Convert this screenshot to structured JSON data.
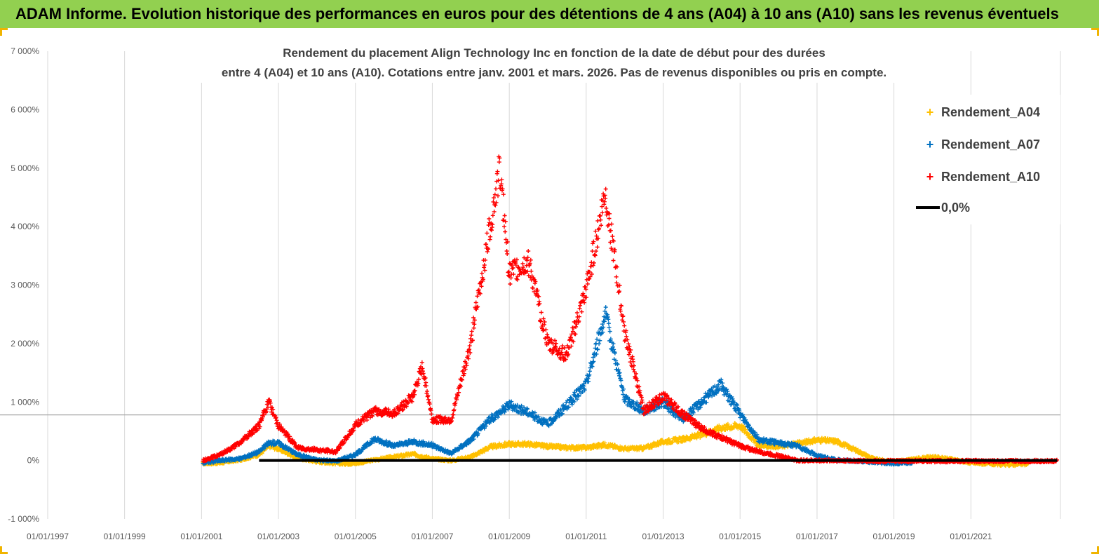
{
  "banner": {
    "text": "ADAM Informe. Evolution historique des performances en euros pour des détentions de 4 ans (A04) à 10 ans (A10) sans les revenus éventuels"
  },
  "chart_data": {
    "type": "scatter",
    "title_line1": "Rendement du placement Align Technology Inc en fonction de la date de début pour des durées",
    "title_line2": "entre 4 (A04) et 10 ans (A10). Cotations entre janv. 2001 et mars. 2026. Pas de revenus disponibles ou pris en compte.",
    "xlim": [
      "1997-01-01",
      "2023-05-01"
    ],
    "ylim": [
      -1000,
      7000
    ],
    "y_ticks": [
      -1000,
      0,
      1000,
      2000,
      3000,
      4000,
      5000,
      6000,
      7000
    ],
    "y_tick_labels": [
      "-1 000%",
      "0%",
      "1 000%",
      "2 000%",
      "3 000%",
      "4 000%",
      "5 000%",
      "6 000%",
      "7 000%"
    ],
    "x_ticks": [
      "1997-01-01",
      "1999-01-01",
      "2001-01-01",
      "2003-01-01",
      "2005-01-01",
      "2007-01-01",
      "2009-01-01",
      "2011-01-01",
      "2013-01-01",
      "2015-01-01",
      "2017-01-01",
      "2019-01-01",
      "2021-01-01"
    ],
    "x_tick_labels": [
      "01/01/1997",
      "01/01/1999",
      "01/01/2001",
      "01/01/2003",
      "01/01/2005",
      "01/01/2007",
      "01/01/2009",
      "01/01/2011",
      "01/01/2013",
      "01/01/2015",
      "01/01/2017",
      "01/01/2019",
      "01/01/2021"
    ],
    "grid": "vertical",
    "legend_position": "top-right",
    "series": [
      {
        "name": "Rendement_A04",
        "color": "#ffc000",
        "marker": "plus",
        "points": [
          [
            "2001-01-15",
            -50
          ],
          [
            "2001-07-01",
            -40
          ],
          [
            "2002-01-01",
            10
          ],
          [
            "2002-07-01",
            100
          ],
          [
            "2002-10-01",
            250
          ],
          [
            "2003-01-01",
            200
          ],
          [
            "2003-07-01",
            40
          ],
          [
            "2004-01-01",
            -20
          ],
          [
            "2004-07-01",
            -50
          ],
          [
            "2005-01-01",
            -50
          ],
          [
            "2005-07-01",
            10
          ],
          [
            "2006-01-01",
            60
          ],
          [
            "2006-07-01",
            110
          ],
          [
            "2007-01-01",
            30
          ],
          [
            "2007-07-01",
            0
          ],
          [
            "2008-01-01",
            60
          ],
          [
            "2008-07-01",
            230
          ],
          [
            "2009-01-01",
            280
          ],
          [
            "2009-07-01",
            280
          ],
          [
            "2010-01-01",
            240
          ],
          [
            "2010-07-01",
            220
          ],
          [
            "2011-01-01",
            220
          ],
          [
            "2011-07-01",
            270
          ],
          [
            "2012-01-01",
            200
          ],
          [
            "2012-07-01",
            210
          ],
          [
            "2013-01-01",
            320
          ],
          [
            "2013-07-01",
            360
          ],
          [
            "2014-01-01",
            440
          ],
          [
            "2014-07-01",
            560
          ],
          [
            "2015-01-01",
            600
          ],
          [
            "2015-07-01",
            250
          ],
          [
            "2016-01-01",
            240
          ],
          [
            "2016-07-01",
            290
          ],
          [
            "2017-01-01",
            350
          ],
          [
            "2017-07-01",
            330
          ],
          [
            "2018-01-01",
            180
          ],
          [
            "2018-07-01",
            20
          ],
          [
            "2019-01-01",
            -20
          ],
          [
            "2019-07-01",
            20
          ],
          [
            "2020-01-01",
            60
          ],
          [
            "2020-07-01",
            20
          ],
          [
            "2021-01-01",
            -40
          ],
          [
            "2021-07-01",
            -60
          ],
          [
            "2022-01-01",
            -70
          ],
          [
            "2022-07-01",
            -60
          ]
        ]
      },
      {
        "name": "Rendement_A07",
        "color": "#0070c0",
        "marker": "plus",
        "points": [
          [
            "2001-01-15",
            -40
          ],
          [
            "2001-07-01",
            0
          ],
          [
            "2002-01-01",
            30
          ],
          [
            "2002-07-01",
            150
          ],
          [
            "2002-10-01",
            300
          ],
          [
            "2003-01-01",
            300
          ],
          [
            "2003-07-01",
            100
          ],
          [
            "2004-01-01",
            10
          ],
          [
            "2004-07-01",
            -10
          ],
          [
            "2005-01-01",
            100
          ],
          [
            "2005-07-01",
            370
          ],
          [
            "2006-01-01",
            250
          ],
          [
            "2006-07-01",
            320
          ],
          [
            "2007-01-01",
            260
          ],
          [
            "2007-07-01",
            120
          ],
          [
            "2008-01-01",
            350
          ],
          [
            "2008-07-01",
            700
          ],
          [
            "2009-01-01",
            950
          ],
          [
            "2009-07-01",
            820
          ],
          [
            "2010-01-01",
            620
          ],
          [
            "2010-07-01",
            940
          ],
          [
            "2011-01-01",
            1300
          ],
          [
            "2011-07-01",
            2500
          ],
          [
            "2012-01-01",
            1050
          ],
          [
            "2012-07-01",
            850
          ],
          [
            "2013-01-01",
            1000
          ],
          [
            "2013-07-01",
            700
          ],
          [
            "2014-01-01",
            1000
          ],
          [
            "2014-07-01",
            1300
          ],
          [
            "2015-01-01",
            800
          ],
          [
            "2015-07-01",
            350
          ],
          [
            "2016-01-01",
            300
          ],
          [
            "2016-07-01",
            250
          ],
          [
            "2017-01-01",
            80
          ],
          [
            "2017-07-01",
            10
          ],
          [
            "2018-01-01",
            -10
          ],
          [
            "2018-07-01",
            -30
          ],
          [
            "2019-01-01",
            -50
          ],
          [
            "2019-07-01",
            -30
          ]
        ]
      },
      {
        "name": "Rendement_A10",
        "color": "#ff0000",
        "marker": "plus",
        "points": [
          [
            "2001-01-15",
            0
          ],
          [
            "2001-07-01",
            100
          ],
          [
            "2002-01-01",
            300
          ],
          [
            "2002-07-01",
            600
          ],
          [
            "2002-10-01",
            1000
          ],
          [
            "2003-01-01",
            600
          ],
          [
            "2003-07-01",
            220
          ],
          [
            "2004-01-01",
            180
          ],
          [
            "2004-07-01",
            150
          ],
          [
            "2005-01-01",
            600
          ],
          [
            "2005-07-01",
            850
          ],
          [
            "2006-01-01",
            800
          ],
          [
            "2006-07-01",
            1100
          ],
          [
            "2006-10-01",
            1600
          ],
          [
            "2007-01-01",
            700
          ],
          [
            "2007-07-01",
            700
          ],
          [
            "2008-01-01",
            2000
          ],
          [
            "2008-07-01",
            4000
          ],
          [
            "2008-10-01",
            5000
          ],
          [
            "2009-01-01",
            3200
          ],
          [
            "2009-07-01",
            3400
          ],
          [
            "2010-01-01",
            2000
          ],
          [
            "2010-07-01",
            1800
          ],
          [
            "2011-01-01",
            2900
          ],
          [
            "2011-07-01",
            4600
          ],
          [
            "2012-01-01",
            2200
          ],
          [
            "2012-07-01",
            850
          ],
          [
            "2013-01-01",
            1100
          ],
          [
            "2013-07-01",
            800
          ],
          [
            "2014-01-01",
            550
          ],
          [
            "2014-07-01",
            400
          ],
          [
            "2015-01-01",
            250
          ],
          [
            "2015-07-01",
            150
          ],
          [
            "2016-01-01",
            80
          ],
          [
            "2016-07-01",
            0
          ],
          [
            "2017-07-01",
            0
          ],
          [
            "2018-07-01",
            -10
          ],
          [
            "2019-07-01",
            -10
          ],
          [
            "2020-07-01",
            -10
          ],
          [
            "2021-07-01",
            -10
          ],
          [
            "2022-07-01",
            -10
          ],
          [
            "2023-04-01",
            -10
          ]
        ]
      },
      {
        "name": "0,0%",
        "color": "#000000",
        "marker": "line",
        "points": [
          [
            "2002-07-01",
            0
          ],
          [
            "2023-04-01",
            0
          ]
        ]
      }
    ],
    "reference_line_y": 780
  }
}
